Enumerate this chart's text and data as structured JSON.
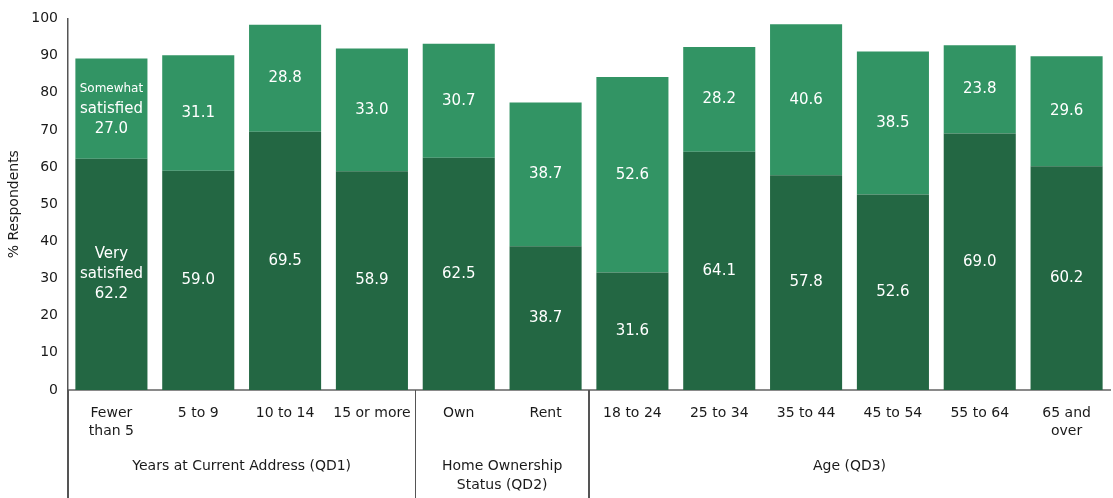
{
  "chart_data": {
    "type": "bar",
    "stacked": true,
    "ylabel": "% Respondents",
    "categories": [
      "Fewer than 5",
      "5 to 9",
      "10 to 14",
      "15 or more",
      "Own",
      "Rent",
      "18 to 24",
      "25 to 34",
      "35 to 44",
      "45 to 54",
      "55 to 64",
      "65 and over"
    ],
    "series": [
      {
        "name": "Very satisfied",
        "color": "#236743",
        "values": [
          62.2,
          59.0,
          69.5,
          58.9,
          62.5,
          38.7,
          31.6,
          64.1,
          57.8,
          52.6,
          69.0,
          60.2
        ],
        "value_labels": [
          "62.2",
          "59.0",
          "69.5",
          "58.9",
          "62.5",
          "38.7",
          "31.6",
          "64.1",
          "57.8",
          "52.6",
          "69.0",
          "60.2"
        ]
      },
      {
        "name": "Somewhat satisfied",
        "color": "#329464",
        "values": [
          27.0,
          31.1,
          28.8,
          33.0,
          30.7,
          38.7,
          52.6,
          28.2,
          40.6,
          38.5,
          23.8,
          29.6
        ],
        "value_labels": [
          "27.0",
          "31.1",
          "28.8",
          "33.0",
          "30.7",
          "38.7",
          "52.6",
          "28.2",
          "40.6",
          "38.5",
          "23.8",
          "29.6"
        ]
      }
    ],
    "ylim": [
      0,
      100
    ],
    "yticks": [
      0,
      10,
      20,
      30,
      40,
      50,
      60,
      70,
      80,
      90,
      100
    ],
    "grid": false,
    "legend": false,
    "annotations": [
      "Years at Current Address (QD1)",
      "Home Ownership Status (QD2)",
      "Age (QD3)"
    ]
  }
}
